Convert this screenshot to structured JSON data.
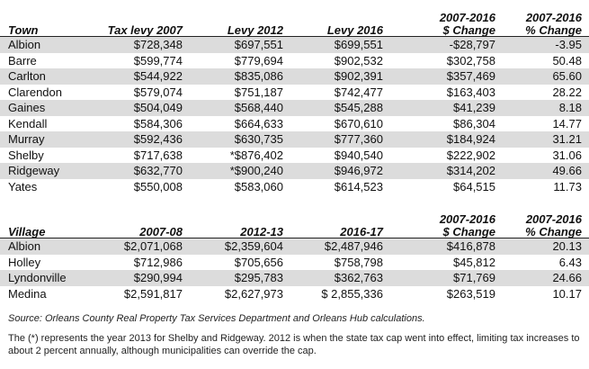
{
  "towns": {
    "headers": [
      "Town",
      "Tax levy 2007",
      "Levy 2012",
      "Levy 2016",
      "2007-2016\n$ Change",
      "2007-2016\n% Change"
    ],
    "header_top": [
      "2007-2016",
      "2007-2016"
    ],
    "header_bottom": [
      "$ Change",
      "% Change"
    ],
    "rows": [
      [
        "Albion",
        "$728,348",
        "$697,551",
        "$699,551",
        "-$28,797",
        "-3.95"
      ],
      [
        "Barre",
        "$599,774",
        "$779,694",
        "$902,532",
        "$302,758",
        "50.48"
      ],
      [
        "Carlton",
        "$544,922",
        "$835,086",
        "$902,391",
        "$357,469",
        "65.60"
      ],
      [
        "Clarendon",
        "$579,074",
        "$751,187",
        "$742,477",
        "$163,403",
        "28.22"
      ],
      [
        "Gaines",
        "$504,049",
        "$568,440",
        "$545,288",
        "$41,239",
        "8.18"
      ],
      [
        "Kendall",
        "$584,306",
        "$664,633",
        "$670,610",
        "$86,304",
        "14.77"
      ],
      [
        "Murray",
        "$592,436",
        "$630,735",
        "$777,360",
        "$184,924",
        "31.21"
      ],
      [
        "Shelby",
        "$717,638",
        "*$876,402",
        "$940,540",
        "$222,902",
        "31.06"
      ],
      [
        "Ridgeway",
        "$632,770",
        "*$900,240",
        "$946,972",
        "$314,202",
        "49.66"
      ],
      [
        "Yates",
        "$550,008",
        "$583,060",
        "$614,523",
        "$64,515",
        "11.73"
      ]
    ]
  },
  "villages": {
    "headers": [
      "Village",
      "2007-08",
      "2012-13",
      "2016-17"
    ],
    "header_top": [
      "2007-2016",
      "2007-2016"
    ],
    "header_bottom": [
      "$ Change",
      "% Change"
    ],
    "rows": [
      [
        "Albion",
        "$2,071,068",
        "$2,359,604",
        "$2,487,946",
        "$416,878",
        "20.13"
      ],
      [
        "Holley",
        "$712,986",
        "$705,656",
        "$758,798",
        "$45,812",
        "6.43"
      ],
      [
        "Lyndonville",
        "$290,994",
        "$295,783",
        "$362,763",
        "$71,769",
        "24.66"
      ],
      [
        "Medina",
        "$2,591,817",
        "$2,627,973",
        "$ 2,855,336",
        "$263,519",
        "10.17"
      ]
    ]
  },
  "source_note": "Source: Orleans County Real Property Tax Services Department and Orleans Hub calculations.",
  "footnote": "The (*) represents the year 2013 for Shelby and Ridgeway. 2012 is when the state tax cap went into effect, limiting tax increases to about 2 percent annually, although municipalities can override the cap.",
  "colors": {
    "shade": "#dcdcdc",
    "text": "#111111",
    "rule": "#222222"
  }
}
